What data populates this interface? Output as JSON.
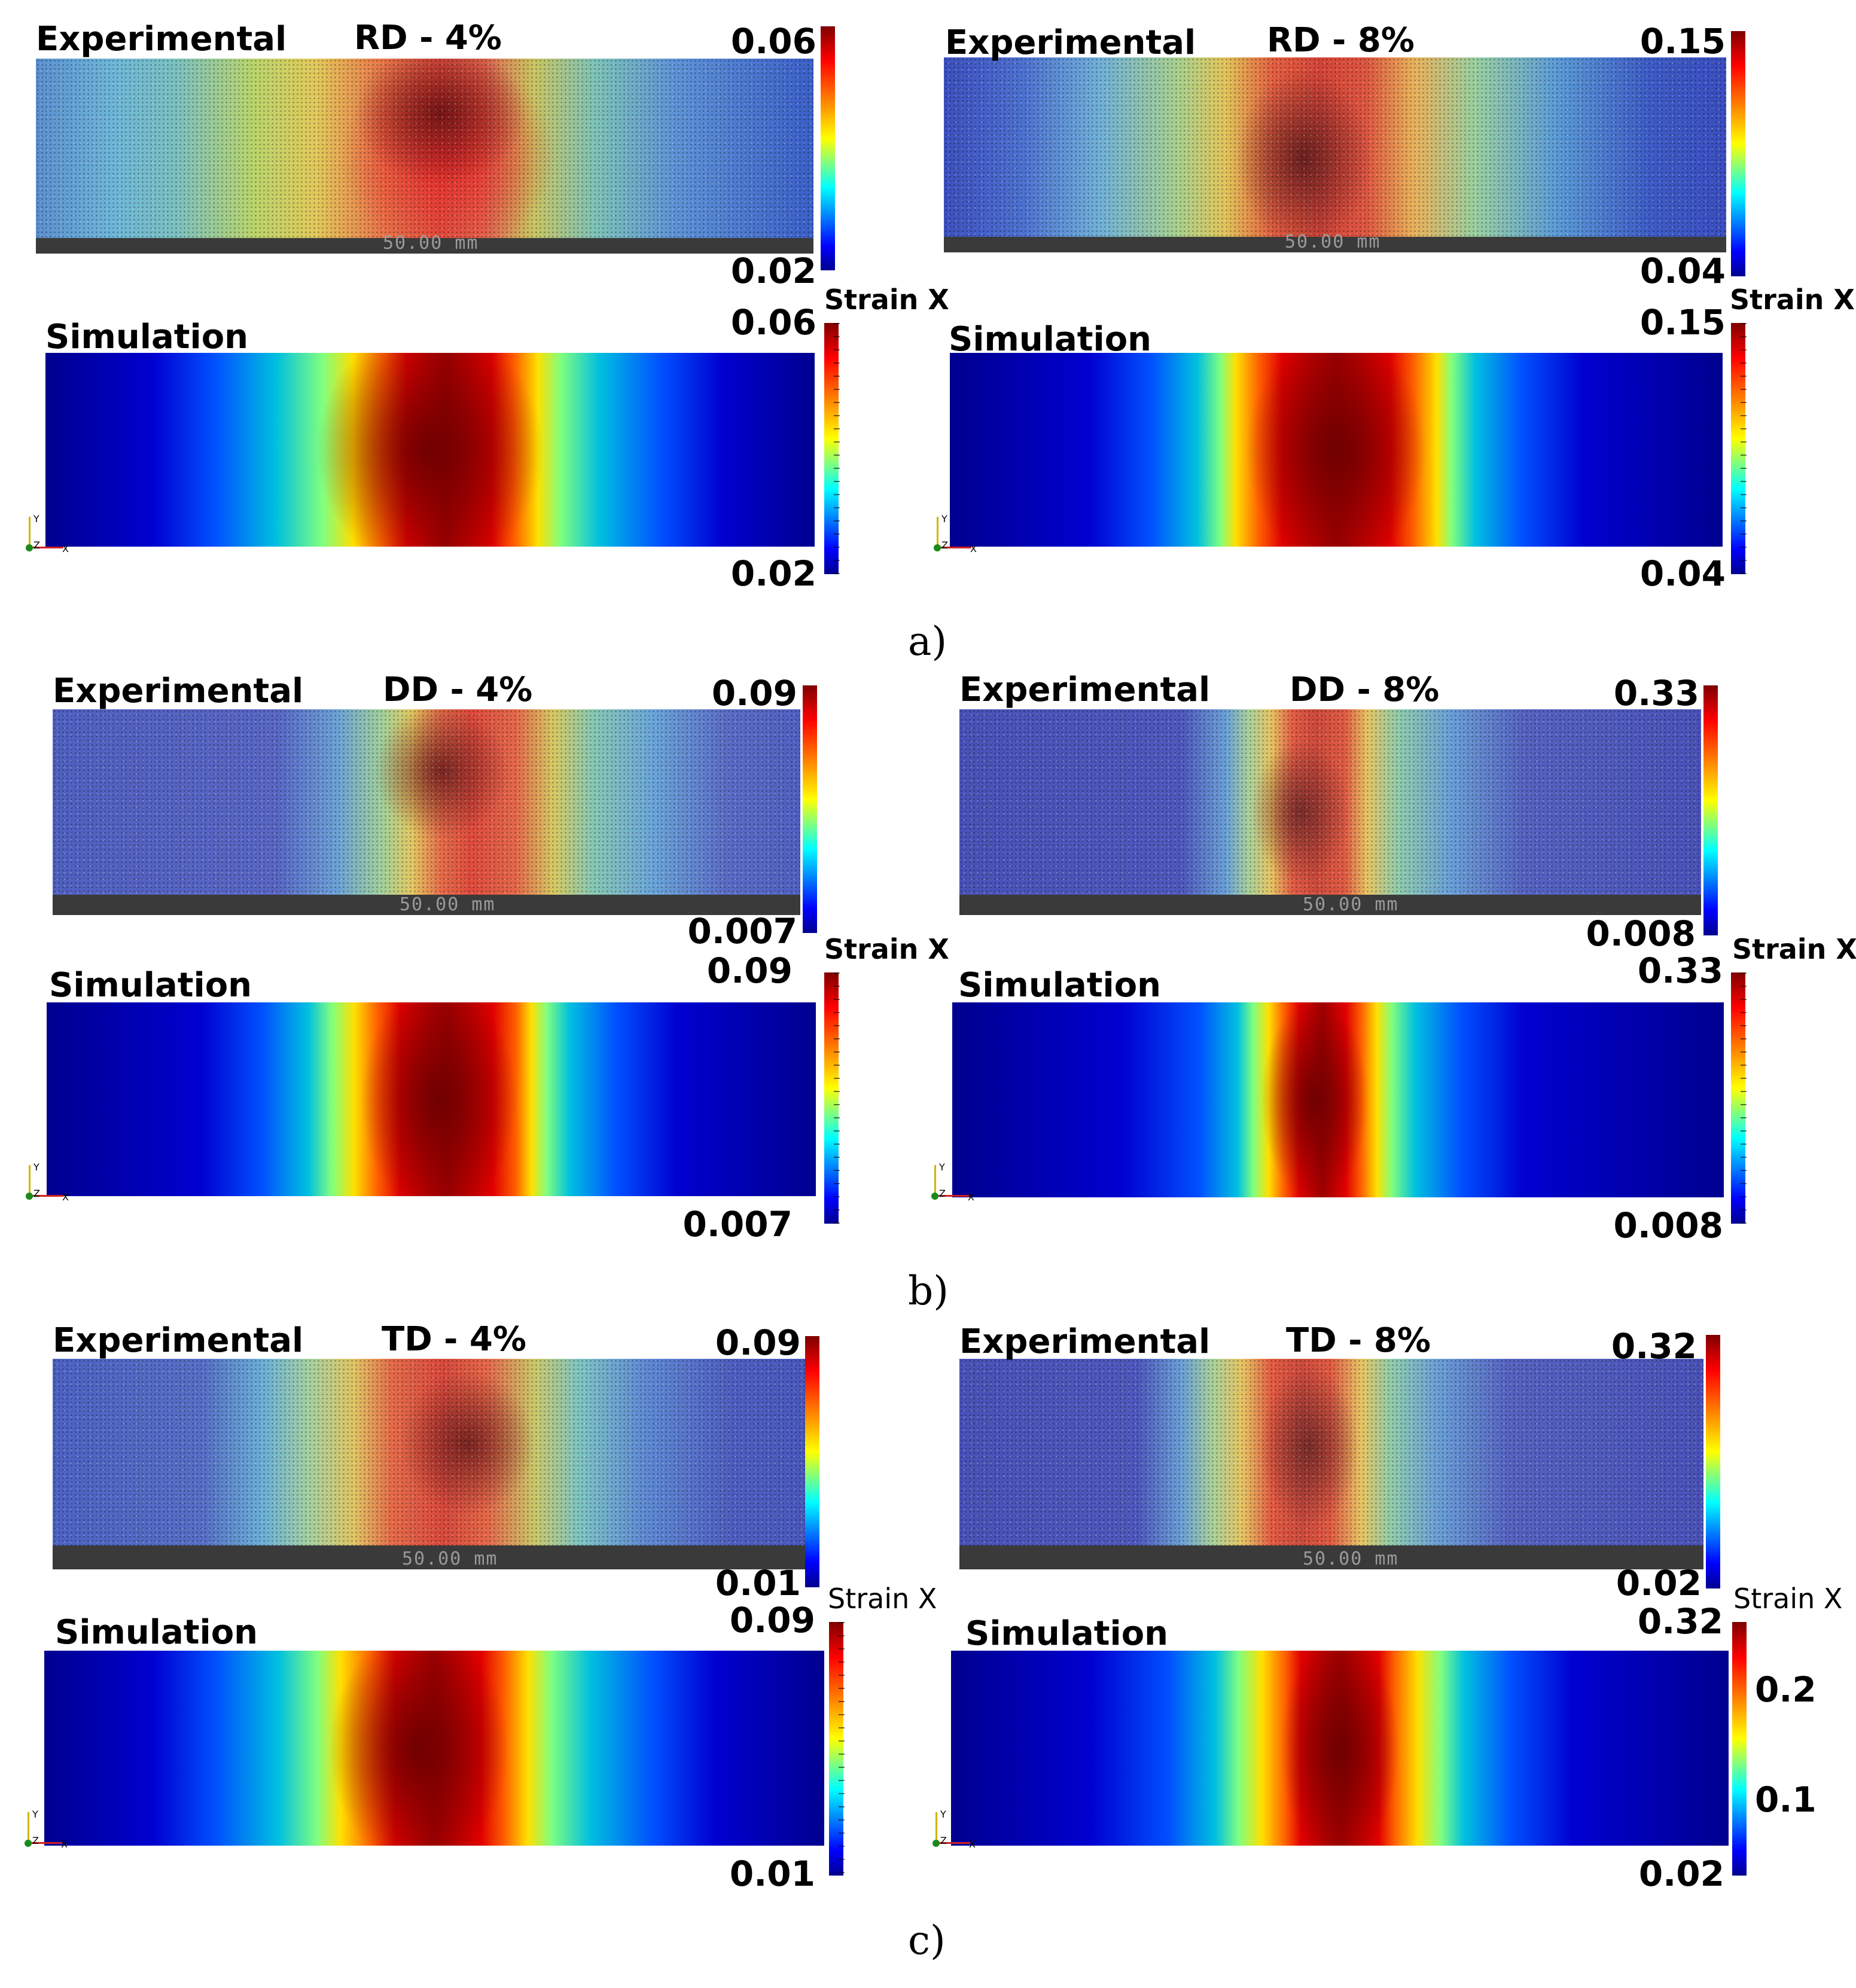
{
  "panels": {
    "rd4": {
      "exp_label": "Experimental",
      "title": "RD - 4%",
      "exp_max": "0.06",
      "exp_min": "0.02",
      "scale": "50.00 mm",
      "strain_label": "Strain X",
      "sim_label": "Simulation",
      "sim_max": "0.06",
      "sim_min": "0.02",
      "axis_y": "Y",
      "axis_z": "Z",
      "axis_x": "X"
    },
    "rd8": {
      "exp_label": "Experimental",
      "title": "RD - 8%",
      "exp_max": "0.15",
      "exp_min": "0.04",
      "scale": "50.00 mm",
      "strain_label": "Strain X",
      "sim_label": "Simulation",
      "sim_max": "0.15",
      "sim_min": "0.04",
      "axis_y": "Y",
      "axis_z": "Z",
      "axis_x": "X"
    },
    "dd4": {
      "exp_label": "Experimental",
      "title": "DD - 4%",
      "exp_max": "0.09",
      "exp_min": "0.007",
      "scale": "50.00 mm",
      "strain_label": "Strain X",
      "sim_label": "Simulation",
      "sim_max": "0.09",
      "sim_min": "0.007",
      "axis_y": "Y",
      "axis_z": "Z",
      "axis_x": "X"
    },
    "dd8": {
      "exp_label": "Experimental",
      "title": "DD - 8%",
      "exp_max": "0.33",
      "exp_min": "0.008",
      "scale": "50.00 mm",
      "strain_label": "Strain X",
      "sim_label": "Simulation",
      "sim_max": "0.33",
      "sim_min": "0.008",
      "axis_y": "Y",
      "axis_z": "Z",
      "axis_x": "X"
    },
    "td4": {
      "exp_label": "Experimental",
      "title": "TD - 4%",
      "exp_max": "0.09",
      "exp_min": "0.01",
      "scale": "50.00 mm",
      "strain_label": "Strain X",
      "sim_label": "Simulation",
      "sim_max": "0.09",
      "sim_min": "0.01",
      "axis_y": "Y",
      "axis_z": "Z",
      "axis_x": "X"
    },
    "td8": {
      "exp_label": "Experimental",
      "title": "TD - 8%",
      "exp_max": "0.32",
      "exp_min": "0.02",
      "scale": "50.00 mm",
      "strain_label": "Strain X",
      "sim_label": "Simulation",
      "sim_max": "0.32",
      "sim_min": "0.02",
      "tick_mid_1": "0.2",
      "tick_mid_2": "0.1",
      "axis_y": "Y",
      "axis_z": "Z",
      "axis_x": "X"
    }
  },
  "captions": {
    "a": "a)",
    "b": "b)",
    "c": "c)"
  },
  "colors": {
    "cold": "#00008f",
    "hot": "#7f0000",
    "mid": "#ffff00"
  }
}
